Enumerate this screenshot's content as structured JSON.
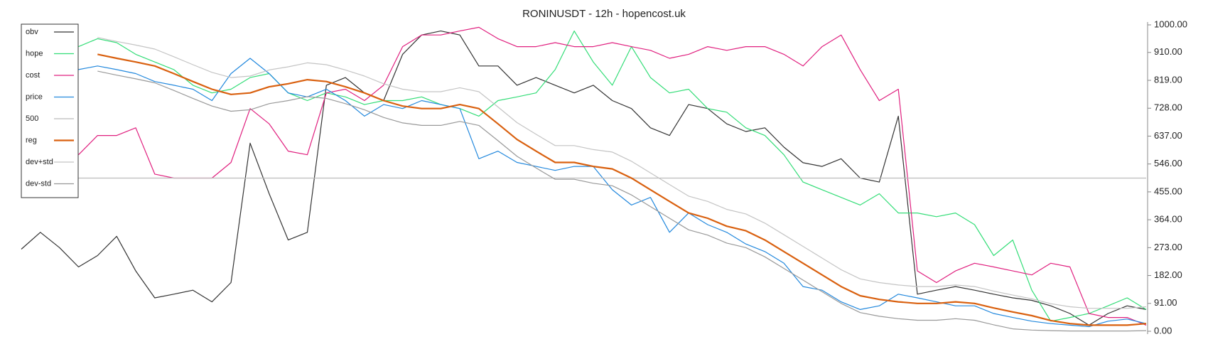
{
  "chart_data": {
    "type": "line",
    "title": "RONINUSDT - 12h - hopencost.uk",
    "ylim": [
      0,
      1000
    ],
    "yticks": [
      {
        "value": 0,
        "label": "0.00"
      },
      {
        "value": 91,
        "label": "91.00"
      },
      {
        "value": 182,
        "label": "182.00"
      },
      {
        "value": 273,
        "label": "273.00"
      },
      {
        "value": 364,
        "label": "364.00"
      },
      {
        "value": 455,
        "label": "455.00"
      },
      {
        "value": 546,
        "label": "546.00"
      },
      {
        "value": 637,
        "label": "637.00"
      },
      {
        "value": 728,
        "label": "728.00"
      },
      {
        "value": 819,
        "label": "819.00"
      },
      {
        "value": 910,
        "label": "910.00"
      },
      {
        "value": 1000,
        "label": "1000.00"
      }
    ],
    "y_axis_side": "right",
    "legend": "upper left",
    "series": [
      {
        "name": "obv",
        "color": "#333333",
        "values": [
          268,
          323,
          273,
          210,
          247,
          310,
          197,
          109,
          121,
          134,
          96,
          159,
          614,
          449,
          298,
          323,
          803,
          828,
          778,
          753,
          904,
          967,
          980,
          967,
          866,
          866,
          803,
          828,
          803,
          778,
          803,
          753,
          727,
          664,
          639,
          740,
          727,
          677,
          652,
          664,
          601,
          550,
          538,
          563,
          500,
          487,
          702,
          121,
          134,
          146,
          134,
          121,
          109,
          101,
          83,
          58,
          20,
          58,
          83,
          71
        ]
      },
      {
        "name": "hope",
        "color": "#33dd77",
        "values": [
          null,
          null,
          null,
          929,
          955,
          942,
          904,
          879,
          854,
          803,
          778,
          790,
          828,
          841,
          778,
          753,
          778,
          765,
          740,
          753,
          753,
          765,
          740,
          727,
          702,
          753,
          765,
          778,
          854,
          980,
          879,
          803,
          929,
          828,
          778,
          790,
          727,
          715,
          664,
          639,
          576,
          487,
          462,
          437,
          412,
          449,
          386,
          386,
          374,
          386,
          348,
          247,
          298,
          134,
          33,
          45,
          58,
          83,
          109,
          71
        ]
      },
      {
        "name": "cost",
        "color": "#e0207f",
        "values": [
          null,
          null,
          null,
          576,
          639,
          639,
          664,
          513,
          500,
          500,
          500,
          551,
          727,
          677,
          588,
          576,
          778,
          790,
          753,
          803,
          929,
          967,
          967,
          980,
          992,
          955,
          929,
          929,
          942,
          929,
          929,
          942,
          929,
          917,
          891,
          904,
          929,
          917,
          929,
          929,
          904,
          866,
          929,
          967,
          854,
          753,
          790,
          197,
          159,
          197,
          222,
          210,
          197,
          184,
          222,
          210,
          58,
          45,
          45,
          20
        ]
      },
      {
        "name": "price",
        "color": "#2288dd",
        "values": [
          null,
          null,
          null,
          854,
          866,
          854,
          841,
          815,
          803,
          790,
          753,
          841,
          891,
          841,
          778,
          765,
          790,
          753,
          702,
          740,
          727,
          753,
          740,
          727,
          563,
          588,
          551,
          538,
          525,
          538,
          538,
          462,
          412,
          437,
          323,
          386,
          348,
          323,
          285,
          260,
          222,
          146,
          134,
          96,
          71,
          83,
          121,
          109,
          96,
          83,
          83,
          58,
          45,
          33,
          25,
          20,
          15,
          33,
          40,
          25
        ]
      },
      {
        "name": "500",
        "color": "#bbbbbb",
        "values": [
          500,
          500,
          500,
          500,
          500,
          500,
          500,
          500,
          500,
          500,
          500,
          500,
          500,
          500,
          500,
          500,
          500,
          500,
          500,
          500,
          500,
          500,
          500,
          500,
          500,
          500,
          500,
          500,
          500,
          500,
          500,
          500,
          500,
          500,
          500,
          500,
          500,
          500,
          500,
          500,
          500,
          500,
          500,
          500,
          500,
          500,
          500,
          500,
          500,
          500,
          500,
          500,
          500,
          500,
          500,
          500,
          500,
          500,
          500,
          500
        ]
      },
      {
        "name": "reg",
        "color": "#d9600f",
        "values": [
          null,
          null,
          null,
          null,
          904,
          891,
          879,
          866,
          841,
          815,
          790,
          773,
          778,
          798,
          808,
          821,
          815,
          798,
          778,
          753,
          735,
          727,
          727,
          740,
          727,
          677,
          626,
          588,
          551,
          551,
          538,
          530,
          500,
          462,
          424,
          386,
          369,
          343,
          328,
          298,
          260,
          222,
          184,
          146,
          116,
          104,
          96,
          91,
          91,
          96,
          91,
          76,
          63,
          51,
          35,
          25,
          20,
          20,
          20,
          25
        ]
      },
      {
        "name": "dev+std",
        "color": "#c4c4c4",
        "values": [
          null,
          null,
          null,
          null,
          959,
          946,
          934,
          921,
          896,
          870,
          845,
          828,
          833,
          853,
          863,
          876,
          870,
          853,
          833,
          808,
          790,
          782,
          782,
          795,
          782,
          732,
          681,
          643,
          606,
          606,
          593,
          585,
          555,
          517,
          479,
          441,
          424,
          398,
          383,
          353,
          315,
          277,
          239,
          201,
          171,
          159,
          151,
          146,
          146,
          151,
          146,
          131,
          118,
          106,
          90,
          80,
          75,
          75,
          75,
          80
        ]
      },
      {
        "name": "dev-std",
        "color": "#999999",
        "values": [
          null,
          null,
          null,
          null,
          849,
          836,
          824,
          811,
          786,
          760,
          735,
          718,
          723,
          743,
          753,
          766,
          760,
          743,
          723,
          698,
          680,
          672,
          672,
          685,
          672,
          622,
          571,
          533,
          496,
          496,
          483,
          475,
          445,
          407,
          369,
          331,
          314,
          288,
          273,
          243,
          205,
          167,
          129,
          91,
          61,
          49,
          41,
          36,
          36,
          41,
          36,
          21,
          8,
          4,
          2,
          1,
          1,
          1,
          1,
          2
        ]
      }
    ]
  }
}
